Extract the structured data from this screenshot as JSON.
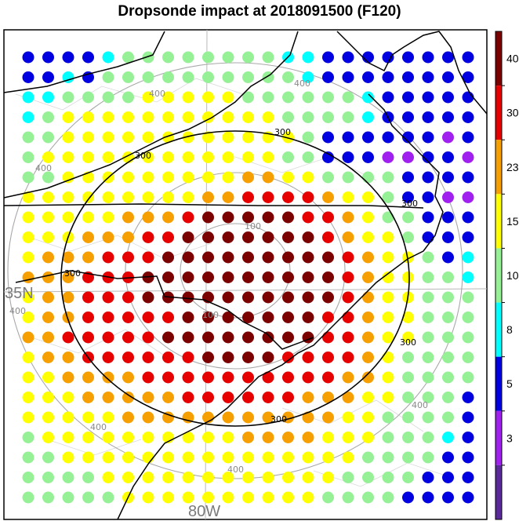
{
  "title": "Dropsonde impact at 2018091500 (F120)",
  "map_labels": {
    "lat_35": "35N",
    "lon_80": "80W"
  },
  "contours": {
    "black_levels": [
      "300",
      "300",
      "300",
      "300",
      "300",
      "300"
    ],
    "gray_levels": [
      "400",
      "400",
      "400",
      "400",
      "400",
      "400",
      "400",
      "100",
      "100"
    ]
  },
  "colorbar": {
    "tick_labels": [
      "40",
      "30",
      "23",
      "15",
      "10",
      "8",
      "5",
      "3"
    ],
    "colors": [
      "#7b0000",
      "#e60000",
      "#f5a000",
      "#ffff00",
      "#96f096",
      "#00ffff",
      "#0000e0",
      "#a020f0",
      "#5a2a9a"
    ]
  },
  "chart_data": {
    "type": "heatmap",
    "title": "Dropsonde impact at 2018091500 (F120)",
    "legend_placement": "right colorbar",
    "colorbar_levels": [
      3,
      5,
      8,
      10,
      15,
      23,
      30,
      40
    ],
    "grid_note": "dot color classes per row (index into colorbar colors: 0=>40, 1=30-40, 2=23-30, 3=15-23, 4=10-15, 5=8-10, 6=5-8, 7=3-5)",
    "rows": [
      [
        6,
        6,
        6,
        6,
        5,
        4,
        4,
        4,
        4,
        4,
        4,
        4,
        4,
        5,
        5,
        6,
        6,
        6,
        6,
        6,
        6,
        6,
        6
      ],
      [
        6,
        6,
        5,
        6,
        4,
        4,
        4,
        4,
        4,
        4,
        4,
        4,
        4,
        4,
        5,
        6,
        6,
        6,
        6,
        6,
        6,
        6,
        6
      ],
      [
        5,
        5,
        4,
        4,
        4,
        4,
        3,
        3,
        3,
        3,
        3,
        4,
        4,
        4,
        4,
        4,
        4,
        5,
        6,
        6,
        6,
        6,
        6
      ],
      [
        5,
        4,
        3,
        3,
        3,
        3,
        3,
        3,
        3,
        3,
        3,
        3,
        3,
        4,
        4,
        4,
        4,
        5,
        6,
        6,
        6,
        6,
        6
      ],
      [
        4,
        4,
        3,
        3,
        3,
        3,
        3,
        3,
        3,
        3,
        3,
        3,
        3,
        3,
        4,
        6,
        6,
        6,
        6,
        6,
        6,
        7,
        6
      ],
      [
        4,
        3,
        3,
        3,
        3,
        3,
        3,
        3,
        3,
        3,
        3,
        3,
        3,
        4,
        4,
        6,
        6,
        6,
        7,
        7,
        6,
        6,
        7
      ],
      [
        4,
        4,
        3,
        3,
        3,
        3,
        3,
        3,
        3,
        3,
        3,
        2,
        2,
        3,
        3,
        4,
        4,
        4,
        4,
        6,
        6,
        6,
        6
      ],
      [
        3,
        3,
        3,
        3,
        3,
        3,
        3,
        3,
        3,
        2,
        2,
        1,
        1,
        1,
        1,
        2,
        3,
        3,
        4,
        6,
        6,
        7,
        7
      ],
      [
        3,
        3,
        3,
        3,
        3,
        2,
        2,
        2,
        1,
        0,
        0,
        0,
        0,
        0,
        1,
        1,
        2,
        3,
        4,
        4,
        6,
        6,
        6
      ],
      [
        3,
        3,
        3,
        2,
        2,
        2,
        1,
        1,
        0,
        0,
        0,
        0,
        0,
        0,
        0,
        1,
        2,
        3,
        3,
        4,
        6,
        6,
        6
      ],
      [
        3,
        2,
        2,
        2,
        1,
        1,
        1,
        0,
        0,
        0,
        0,
        0,
        0,
        0,
        0,
        0,
        1,
        2,
        3,
        3,
        4,
        6,
        5
      ],
      [
        2,
        2,
        2,
        1,
        1,
        1,
        0,
        0,
        0,
        0,
        0,
        0,
        0,
        0,
        0,
        0,
        1,
        2,
        3,
        3,
        4,
        4,
        5
      ],
      [
        3,
        2,
        2,
        1,
        1,
        1,
        0,
        0,
        0,
        0,
        0,
        0,
        0,
        0,
        0,
        0,
        1,
        2,
        3,
        3,
        4,
        4,
        4
      ],
      [
        3,
        2,
        2,
        1,
        1,
        1,
        1,
        1,
        0,
        0,
        0,
        0,
        0,
        0,
        0,
        1,
        1,
        2,
        3,
        3,
        4,
        4,
        4
      ],
      [
        2,
        2,
        1,
        1,
        1,
        1,
        1,
        0,
        0,
        0,
        0,
        0,
        0,
        0,
        0,
        1,
        1,
        2,
        3,
        3,
        4,
        4,
        4
      ],
      [
        3,
        2,
        2,
        1,
        1,
        1,
        1,
        1,
        1,
        0,
        0,
        0,
        0,
        1,
        1,
        1,
        1,
        2,
        3,
        4,
        4,
        4,
        4
      ],
      [
        3,
        3,
        2,
        2,
        2,
        2,
        1,
        1,
        1,
        1,
        1,
        1,
        1,
        1,
        1,
        1,
        2,
        2,
        3,
        4,
        4,
        4,
        4
      ],
      [
        3,
        3,
        3,
        2,
        2,
        2,
        2,
        2,
        1,
        1,
        1,
        1,
        1,
        1,
        2,
        2,
        2,
        3,
        3,
        4,
        4,
        4,
        6
      ],
      [
        3,
        3,
        3,
        3,
        3,
        2,
        2,
        2,
        2,
        2,
        2,
        2,
        2,
        2,
        2,
        2,
        3,
        3,
        4,
        4,
        4,
        4,
        6
      ],
      [
        4,
        3,
        3,
        3,
        3,
        3,
        3,
        3,
        3,
        3,
        3,
        2,
        2,
        2,
        2,
        3,
        3,
        3,
        4,
        4,
        4,
        5,
        6
      ],
      [
        4,
        4,
        3,
        3,
        3,
        3,
        3,
        3,
        3,
        3,
        3,
        3,
        3,
        3,
        3,
        3,
        3,
        4,
        4,
        4,
        4,
        6,
        6
      ],
      [
        4,
        4,
        4,
        4,
        3,
        3,
        3,
        3,
        3,
        3,
        3,
        3,
        3,
        3,
        3,
        3,
        4,
        4,
        4,
        4,
        6,
        6,
        6
      ],
      [
        4,
        4,
        4,
        4,
        4,
        3,
        3,
        3,
        3,
        3,
        3,
        3,
        3,
        3,
        3,
        4,
        4,
        4,
        4,
        6,
        6,
        6,
        6
      ]
    ]
  }
}
